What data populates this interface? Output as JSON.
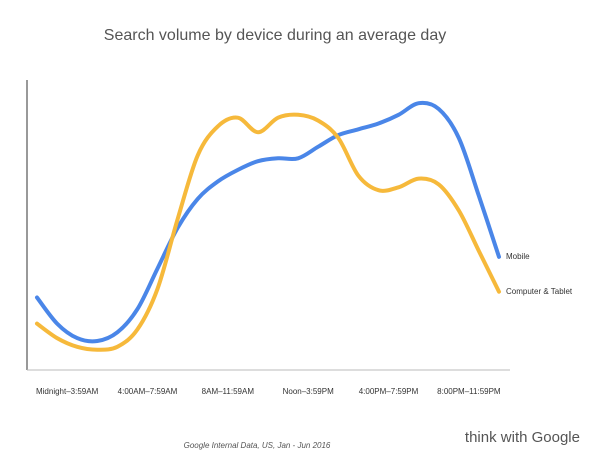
{
  "chart_data": {
    "type": "line",
    "title": "Search volume by device during an average day",
    "categories": [
      "Midnight–3:59AM",
      null,
      null,
      null,
      "4:00AM–7:59AM",
      null,
      null,
      null,
      "8AM–11:59AM",
      null,
      null,
      null,
      "Noon–3:59PM",
      null,
      null,
      null,
      "4:00PM–7:59PM",
      null,
      null,
      null,
      "8:00PM–11:59PM",
      null,
      null,
      null
    ],
    "series": [
      {
        "name": "Mobile",
        "color": "#4a86e8",
        "values": [
          25,
          16,
          11,
          10,
          13,
          21,
          35,
          49,
          59,
          65,
          69,
          72,
          73,
          73,
          77,
          81,
          83,
          85,
          88,
          92,
          90,
          80,
          60,
          39
        ]
      },
      {
        "name": "Computer & Tablet",
        "color": "#f6b93b",
        "values": [
          16,
          11,
          8,
          7,
          8,
          14,
          28,
          52,
          74,
          84,
          87,
          82,
          87,
          88,
          86,
          80,
          67,
          62,
          63,
          66,
          64,
          55,
          41,
          27
        ]
      }
    ],
    "ylim": [
      0,
      100
    ],
    "source": "Google Internal Data, US, Jan - Jun 2016",
    "brand": "think with Google"
  }
}
